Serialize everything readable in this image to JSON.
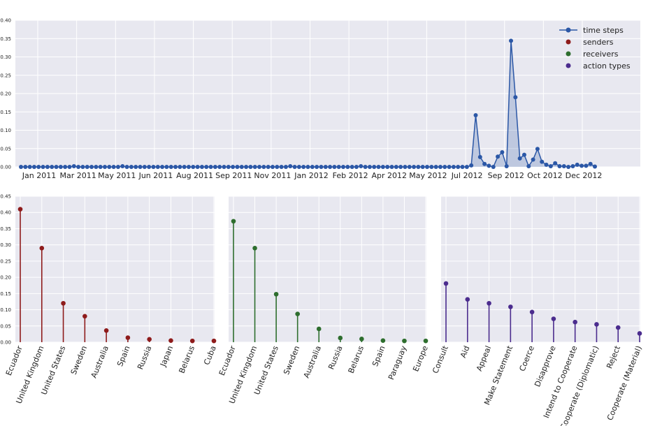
{
  "chart_data": [
    {
      "type": "line",
      "title": "",
      "xlabel": "",
      "ylabel": "",
      "ylim": [
        0,
        0.4
      ],
      "yticks": [
        "0.00",
        "0.05",
        "0.10",
        "0.15",
        "0.20",
        "0.25",
        "0.30",
        "0.35",
        "0.40"
      ],
      "xtick_labels": [
        "Jan 2011",
        "Mar 2011",
        "May 2011",
        "Jun 2011",
        "Aug 2011",
        "Sep 2011",
        "Nov 2011",
        "Jan 2012",
        "Feb 2012",
        "Apr 2012",
        "May 2012",
        "Jul 2012",
        "Sep 2012",
        "Oct 2012",
        "Dec 2012"
      ],
      "color": "#2b57a6",
      "fill": true,
      "grid": true,
      "legend": {
        "placement": "top-right",
        "entries": [
          {
            "name": "time steps",
            "color": "#2b57a6",
            "style": "line-marker"
          },
          {
            "name": "senders",
            "color": "#8e1b1b",
            "style": "marker"
          },
          {
            "name": "receivers",
            "color": "#2e6e2e",
            "style": "marker"
          },
          {
            "name": "action types",
            "color": "#4b2c8e",
            "style": "marker"
          }
        ]
      },
      "values": [
        0.0,
        0.0,
        0.0,
        0.0,
        0.0,
        0.0,
        0.0,
        0.0,
        0.0,
        0.0,
        0.0,
        0.0,
        0.002,
        0.0,
        0.0,
        0.0,
        0.0,
        0.0,
        0.0,
        0.0,
        0.0,
        0.0,
        0.0,
        0.002,
        0.0,
        0.0,
        0.0,
        0.0,
        0.0,
        0.0,
        0.0,
        0.0,
        0.0,
        0.0,
        0.0,
        0.0,
        0.0,
        0.0,
        0.0,
        0.0,
        0.0,
        0.0,
        0.0,
        0.0,
        0.0,
        0.0,
        0.0,
        0.0,
        0.0,
        0.0,
        0.0,
        0.0,
        0.0,
        0.0,
        0.0,
        0.0,
        0.0,
        0.0,
        0.0,
        0.0,
        0.0,
        0.002,
        0.0,
        0.0,
        0.0,
        0.0,
        0.0,
        0.0,
        0.0,
        0.0,
        0.0,
        0.0,
        0.0,
        0.0,
        0.0,
        0.0,
        0.0,
        0.002,
        0.0,
        0.0,
        0.0,
        0.0,
        0.0,
        0.0,
        0.0,
        0.0,
        0.0,
        0.0,
        0.0,
        0.0,
        0.0,
        0.0,
        0.0,
        0.0,
        0.0,
        0.0,
        0.0,
        0.0,
        0.0,
        0.0,
        0.0,
        0.0,
        0.004,
        0.141,
        0.027,
        0.008,
        0.003,
        0.0,
        0.028,
        0.04,
        0.002,
        0.344,
        0.19,
        0.023,
        0.033,
        0.002,
        0.02,
        0.049,
        0.014,
        0.006,
        0.002,
        0.01,
        0.002,
        0.002,
        0.0,
        0.002,
        0.006,
        0.003,
        0.003,
        0.008,
        0.001
      ]
    },
    {
      "type": "bar",
      "title": "",
      "color": "#8e1b1b",
      "ylim": [
        0,
        0.45
      ],
      "yticks": [
        "0.00",
        "0.05",
        "0.10",
        "0.15",
        "0.20",
        "0.25",
        "0.30",
        "0.35",
        "0.40",
        "0.45"
      ],
      "categories": [
        "Ecuador",
        "United Kingdom",
        "United States",
        "Sweden",
        "Australia",
        "Spain",
        "Russia",
        "Japan",
        "Belarus",
        "Cuba"
      ],
      "values": [
        0.41,
        0.29,
        0.12,
        0.08,
        0.036,
        0.014,
        0.009,
        0.005,
        0.004,
        0.004
      ]
    },
    {
      "type": "bar",
      "title": "",
      "color": "#2e6e2e",
      "ylim": [
        0,
        0.45
      ],
      "categories": [
        "Ecuador",
        "United Kingdom",
        "United States",
        "Sweden",
        "Australia",
        "Russia",
        "Belarus",
        "Spain",
        "Paraguay",
        "Europe"
      ],
      "values": [
        0.373,
        0.29,
        0.148,
        0.087,
        0.041,
        0.013,
        0.01,
        0.005,
        0.004,
        0.004
      ]
    },
    {
      "type": "bar",
      "title": "",
      "color": "#4b2c8e",
      "ylim": [
        0,
        0.45
      ],
      "categories": [
        "Consult",
        "Aid",
        "Appeal",
        "Make Statement",
        "Coerce",
        "Disapprove",
        "Intend to Cooperate",
        "Cooperate (Diplomatic)",
        "Reject",
        "Cooperate (Material)"
      ],
      "values": [
        0.181,
        0.132,
        0.12,
        0.109,
        0.093,
        0.072,
        0.062,
        0.055,
        0.045,
        0.027
      ]
    }
  ]
}
